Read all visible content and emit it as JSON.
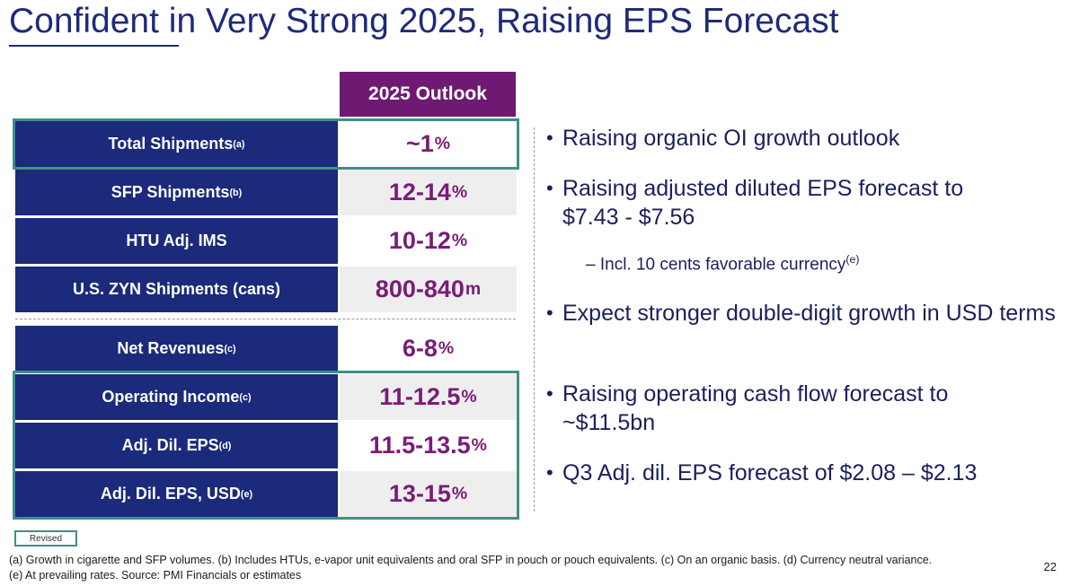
{
  "title": "Confident in Very Strong 2025, Raising EPS Forecast",
  "table": {
    "header": "2025 Outlook",
    "rows": [
      {
        "label": "Total Shipments",
        "label_sup": "(a)",
        "value": "~1",
        "unit": "%"
      },
      {
        "label": "SFP Shipments",
        "label_sup": "(b)",
        "value": "12-14",
        "unit": "%"
      },
      {
        "label": "HTU Adj. IMS",
        "label_sup": "",
        "value": "10-12",
        "unit": "%"
      },
      {
        "label": "U.S. ZYN Shipments (cans)",
        "label_sup": "",
        "value": "800-840",
        "unit": "m"
      },
      {
        "label": "Net Revenues",
        "label_sup": "(c)",
        "value": "6-8",
        "unit": "%"
      },
      {
        "label": "Operating Income",
        "label_sup": "(c)",
        "value": "11-12.5",
        "unit": "%"
      },
      {
        "label": "Adj. Dil. EPS",
        "label_sup": "(d)",
        "value": "11.5-13.5",
        "unit": "%"
      },
      {
        "label": "Adj. Dil. EPS, USD",
        "label_sup": "(e)",
        "value": "13-15",
        "unit": "%"
      }
    ]
  },
  "bullets": [
    "Raising organic OI growth outlook",
    "Raising adjusted diluted EPS forecast to $7.43 - $7.56",
    "Expect stronger double-digit growth in USD terms",
    "Raising operating cash flow forecast to ~$11.5bn",
    "Q3 Adj. dil. EPS forecast of $2.08 – $2.13"
  ],
  "sub_bullet": {
    "dash": "–",
    "text": "Incl. 10 cents favorable currency",
    "sup": "(e)"
  },
  "legend": "Revised",
  "footnotes": [
    "(a) Growth in cigarette and SFP volumes. (b) Includes HTUs, e-vapor unit equivalents and oral SFP in pouch or pouch equivalents. (c) On an organic basis. (d) Currency neutral variance.",
    "(e) At prevailing rates. Source: PMI Financials or estimates"
  ],
  "page_number": "22",
  "colors": {
    "navy": "#1b2a7a",
    "purple": "#6e1a72",
    "value_purple": "#7a1c78",
    "teal_box": "#3f8f86",
    "shade": "#eeeeee"
  }
}
